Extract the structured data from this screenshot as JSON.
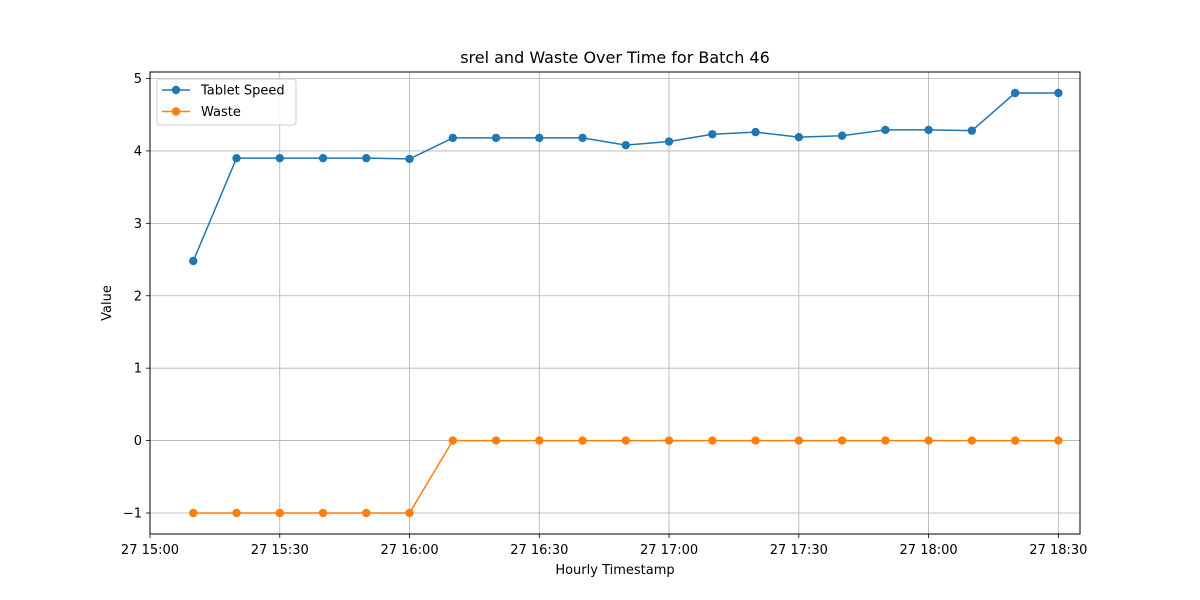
{
  "chart_data": {
    "type": "line",
    "title": "srel and Waste Over Time for Batch 46",
    "xlabel": "Hourly Timestamp",
    "ylabel": "Value",
    "x": [
      "27 15:10",
      "27 15:20",
      "27 15:30",
      "27 15:40",
      "27 15:50",
      "27 16:00",
      "27 16:10",
      "27 16:20",
      "27 16:30",
      "27 16:40",
      "27 16:50",
      "27 17:00",
      "27 17:10",
      "27 17:20",
      "27 17:30",
      "27 17:40",
      "27 17:50",
      "27 18:00",
      "27 18:10",
      "27 18:20",
      "27 18:30"
    ],
    "xlim": [
      "27 15:00",
      "27 18:35"
    ],
    "x_ticks": [
      "27 15:00",
      "27 15:30",
      "27 16:00",
      "27 16:30",
      "27 17:00",
      "27 17:30",
      "27 18:00",
      "27 18:30"
    ],
    "ylim": [
      -1.29,
      5.09
    ],
    "y_ticks": [
      "−1",
      "0",
      "1",
      "2",
      "3",
      "4",
      "5"
    ],
    "grid": true,
    "legend_position": "upper-left",
    "series": [
      {
        "name": "Tablet Speed",
        "color": "#1f77b4",
        "values": [
          2.48,
          3.9,
          3.9,
          3.9,
          3.9,
          3.89,
          4.18,
          4.18,
          4.18,
          4.18,
          4.08,
          4.13,
          4.23,
          4.26,
          4.19,
          4.21,
          4.29,
          4.29,
          4.28,
          4.8,
          4.8
        ]
      },
      {
        "name": "Waste",
        "color": "#ff7f0e",
        "values": [
          -1,
          -1,
          -1,
          -1,
          -1,
          -1,
          0,
          0,
          0,
          0,
          0,
          0,
          0,
          0,
          0,
          0,
          0,
          0,
          0,
          0,
          0
        ]
      }
    ]
  }
}
